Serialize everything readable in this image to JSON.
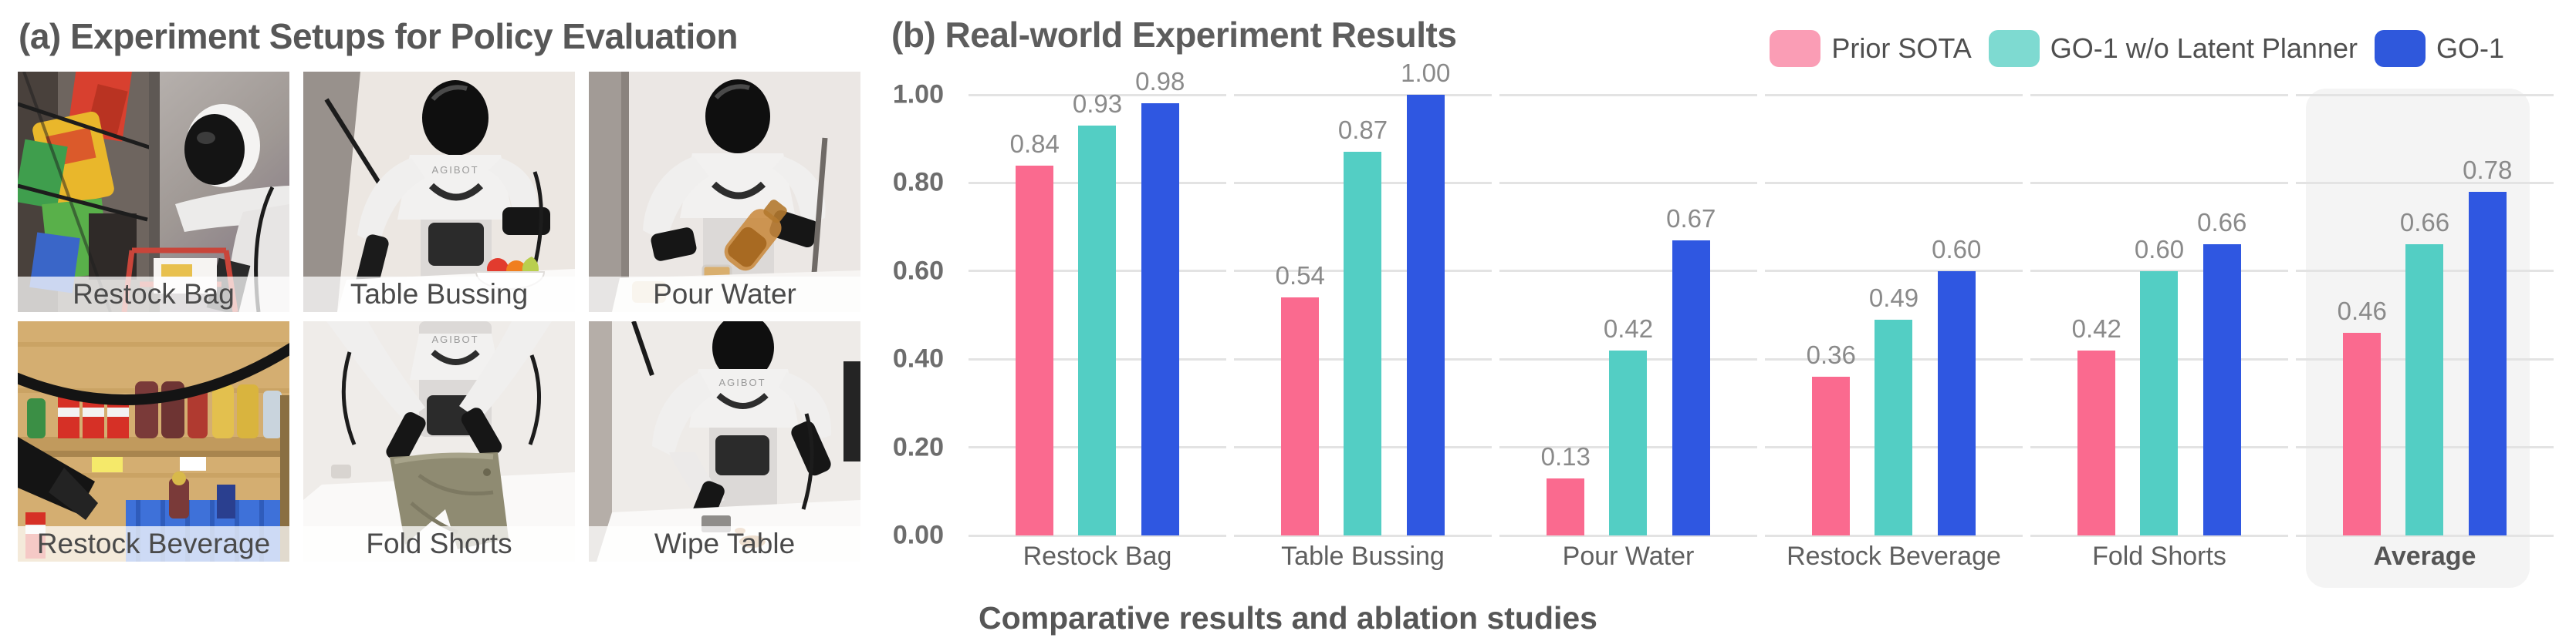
{
  "panel_a": {
    "title": "(a) Experiment Setups for Policy Evaluation",
    "setups": [
      "Restock Bag",
      "Table Bussing",
      "Pour Water",
      "Restock Beverage",
      "Fold Shorts",
      "Wipe Table"
    ],
    "robot_brand": "AGIBOT"
  },
  "panel_b": {
    "title": "(b) Real-world Experiment Results",
    "caption": "Comparative results and ablation studies"
  },
  "legend": {
    "position": "top-right",
    "items": [
      {
        "label": "Prior SOTA",
        "swatch_color": "#FA9DB5"
      },
      {
        "label": "GO-1 w/o Latent Planner",
        "swatch_color": "#7EDAD1"
      },
      {
        "label": "GO-1",
        "swatch_color": "#2F58DC"
      }
    ]
  },
  "chart_data": {
    "type": "bar",
    "title": "(b) Real-world Experiment Results",
    "categories": [
      "Restock Bag",
      "Table Bussing",
      "Pour Water",
      "Restock Beverage",
      "Fold Shorts",
      "Average"
    ],
    "series": [
      {
        "name": "Prior SOTA",
        "color": "#FA6A8F",
        "values": [
          0.84,
          0.54,
          0.13,
          0.36,
          0.42,
          0.46
        ]
      },
      {
        "name": "GO-1 w/o Latent Planner",
        "color": "#53CEC4",
        "values": [
          0.93,
          0.87,
          0.42,
          0.49,
          0.6,
          0.66
        ]
      },
      {
        "name": "GO-1",
        "color": "#2F57E1",
        "values": [
          0.98,
          1.0,
          0.67,
          0.6,
          0.66,
          0.78
        ]
      }
    ],
    "ylim": [
      0,
      1.0
    ],
    "yticks": [
      {
        "label": "1.00",
        "value": 1.0
      },
      {
        "label": "0.80",
        "value": 0.8
      },
      {
        "label": "0.60",
        "value": 0.6
      },
      {
        "label": "0.40",
        "value": 0.4
      },
      {
        "label": "0.20",
        "value": 0.2
      },
      {
        "label": "0.00",
        "value": 0.0
      }
    ],
    "grid": "horizontal",
    "legend_position": "top-right",
    "highlight_category": "Average",
    "value_label_format": "2dp",
    "xlabel": "",
    "ylabel": ""
  }
}
